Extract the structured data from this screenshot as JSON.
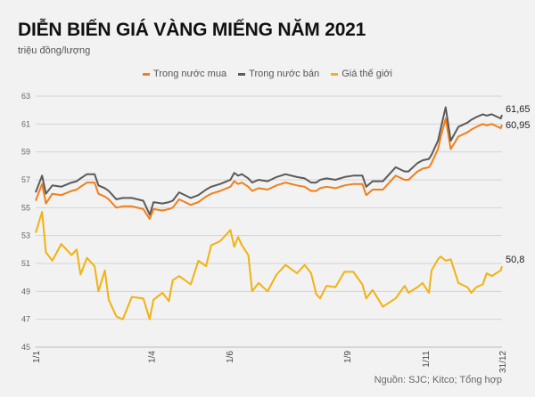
{
  "chart_data": {
    "type": "line",
    "title": "DIỄN BIẾN GIÁ VÀNG MIẾNG NĂM 2021",
    "subtitle": "triệu đồng/lượng",
    "source": "Nguồn: SJC; Kitco; Tổng hợp",
    "ylim": [
      45,
      63
    ],
    "yticks": [
      "45",
      "47",
      "49",
      "51",
      "53",
      "55",
      "57",
      "59",
      "61",
      "63"
    ],
    "xticks": [
      "1/1",
      "1/4",
      "1/6",
      "1/9",
      "1/11",
      "31/12"
    ],
    "grid": true,
    "legend": "top",
    "x": [
      "1/1",
      "6/1",
      "9/1",
      "14/1",
      "21/1",
      "29/1",
      "2/2",
      "5/2",
      "10/2",
      "16/2",
      "19/2",
      "24/2",
      "27/2",
      "5/3",
      "10/3",
      "17/3",
      "26/3",
      "31/3",
      "3/4",
      "10/4",
      "15/4",
      "18/4",
      "23/4",
      "2/5",
      "8/5",
      "14/5",
      "18/5",
      "25/5",
      "2/6",
      "5/6",
      "8/6",
      "11/6",
      "16/6",
      "19/6",
      "24/6",
      "1/7",
      "8/7",
      "15/7",
      "24/7",
      "30/7",
      "4/8",
      "8/8",
      "11/8",
      "16/8",
      "23/8",
      "30/8",
      "6/9",
      "13/9",
      "16/9",
      "21/9",
      "29/9",
      "9/10",
      "16/10",
      "19/10",
      "26/10",
      "30/10",
      "4/11",
      "6/11",
      "11/11",
      "13/11",
      "17/11",
      "21/11",
      "27/11",
      "4/12",
      "7/12",
      "11/12",
      "16/12",
      "19/12",
      "23/12",
      "30/12",
      "31/12"
    ],
    "series": [
      {
        "name": "Trong nước mua",
        "color": "#f07f1a",
        "end_label": "60,95",
        "values": [
          55.5,
          56.7,
          55.3,
          56.0,
          55.9,
          56.2,
          56.3,
          56.5,
          56.8,
          56.8,
          56.0,
          55.8,
          55.6,
          55.0,
          55.1,
          55.1,
          54.9,
          54.2,
          54.9,
          54.8,
          54.9,
          55.0,
          55.6,
          55.2,
          55.4,
          55.8,
          56.0,
          56.2,
          56.5,
          56.9,
          56.7,
          56.8,
          56.5,
          56.2,
          56.4,
          56.3,
          56.6,
          56.8,
          56.6,
          56.5,
          56.2,
          56.2,
          56.4,
          56.5,
          56.4,
          56.6,
          56.7,
          56.7,
          55.9,
          56.3,
          56.3,
          57.3,
          57.0,
          57.0,
          57.6,
          57.8,
          57.9,
          58.2,
          59.2,
          60.0,
          61.4,
          59.2,
          60.1,
          60.4,
          60.6,
          60.8,
          61.0,
          60.9,
          61.0,
          60.7,
          60.95
        ]
      },
      {
        "name": "Trong nước bán",
        "color": "#5a5a5a",
        "end_label": "61,65",
        "values": [
          56.1,
          57.3,
          56.0,
          56.6,
          56.5,
          56.8,
          56.9,
          57.1,
          57.4,
          57.4,
          56.6,
          56.4,
          56.2,
          55.6,
          55.7,
          55.7,
          55.5,
          54.5,
          55.4,
          55.3,
          55.4,
          55.5,
          56.1,
          55.7,
          55.9,
          56.3,
          56.5,
          56.7,
          57.0,
          57.5,
          57.3,
          57.4,
          57.1,
          56.8,
          57.0,
          56.9,
          57.2,
          57.4,
          57.2,
          57.1,
          56.8,
          56.8,
          57.0,
          57.1,
          57.0,
          57.2,
          57.3,
          57.3,
          56.5,
          56.9,
          56.9,
          57.9,
          57.6,
          57.6,
          58.2,
          58.4,
          58.5,
          58.8,
          59.8,
          60.6,
          62.2,
          59.8,
          60.8,
          61.1,
          61.3,
          61.5,
          61.7,
          61.6,
          61.7,
          61.4,
          61.65
        ]
      },
      {
        "name": "Giá thế giới",
        "color": "#f2b20f",
        "end_label": "50,8",
        "values": [
          53.2,
          54.7,
          51.8,
          51.2,
          52.4,
          51.6,
          52.0,
          50.2,
          51.4,
          50.8,
          49.0,
          50.5,
          48.4,
          47.2,
          47.0,
          48.6,
          48.5,
          47.0,
          48.4,
          48.9,
          48.3,
          49.8,
          50.1,
          49.5,
          51.2,
          50.8,
          52.3,
          52.6,
          53.4,
          52.2,
          52.9,
          52.3,
          51.6,
          49.0,
          49.6,
          49.0,
          50.2,
          50.9,
          50.3,
          50.9,
          50.3,
          48.8,
          48.5,
          49.4,
          49.3,
          50.4,
          50.4,
          49.5,
          48.5,
          49.1,
          47.9,
          48.5,
          49.4,
          48.9,
          49.3,
          49.6,
          48.9,
          50.5,
          51.3,
          51.5,
          51.2,
          51.3,
          49.6,
          49.3,
          48.9,
          49.3,
          49.5,
          50.3,
          50.1,
          50.5,
          50.8
        ]
      }
    ]
  }
}
